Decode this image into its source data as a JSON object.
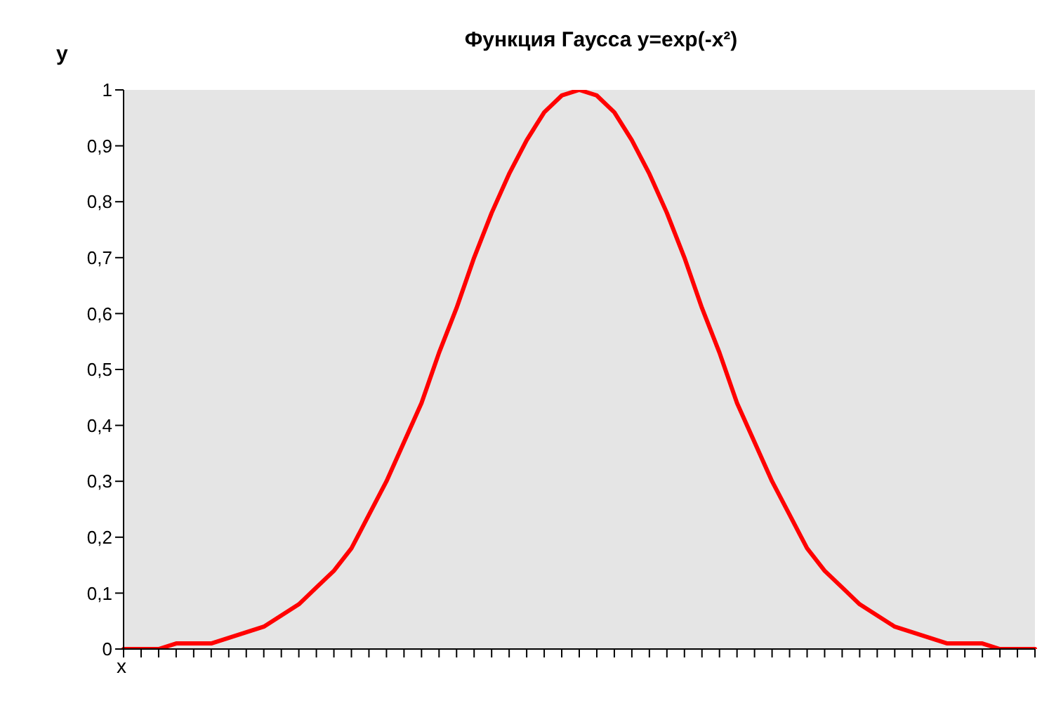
{
  "chart_data": {
    "type": "line",
    "title": "Функция Гаусса y=exp(-x²)",
    "xlabel": "x",
    "ylabel": "y",
    "categories": [
      null,
      null,
      null,
      null,
      null,
      null,
      null,
      null,
      null,
      null,
      null,
      null,
      null,
      null,
      null,
      null,
      null,
      null,
      null,
      null,
      null,
      null,
      null,
      null,
      null,
      null,
      null,
      null,
      null,
      null,
      null,
      null,
      null,
      null,
      null,
      null,
      null,
      null,
      null,
      null,
      null,
      null,
      null,
      null,
      null,
      null,
      null,
      null,
      null,
      null,
      null,
      null,
      null
    ],
    "series": [
      {
        "color": "#ff0000",
        "values": [
          0,
          0,
          0,
          0.01,
          0.01,
          0.01,
          0.02,
          0.03,
          0.04,
          0.06,
          0.08,
          0.11,
          0.14,
          0.18,
          0.24,
          0.3,
          0.37,
          0.44,
          0.53,
          0.61,
          0.7,
          0.78,
          0.85,
          0.91,
          0.96,
          0.99,
          1,
          0.99,
          0.96,
          0.91,
          0.85,
          0.78,
          0.7,
          0.61,
          0.53,
          0.44,
          0.37,
          0.3,
          0.24,
          0.18,
          0.14,
          0.11,
          0.08,
          0.06,
          0.04,
          0.03,
          0.02,
          0.01,
          0.01,
          0.01,
          0,
          0,
          0
        ]
      }
    ],
    "ylim": [
      0,
      1
    ],
    "yticks": [
      0,
      {
        "value": 0.1,
        "label": "0,1"
      },
      {
        "value": 0.2,
        "label": "0,2"
      },
      {
        "value": 0.3,
        "label": "0,3"
      },
      {
        "value": 0.4,
        "label": "0,4"
      },
      {
        "value": 0.5,
        "label": "0,5"
      },
      {
        "value": 0.6,
        "label": "0,6"
      },
      {
        "value": 0.7,
        "label": "0,7"
      },
      {
        "value": 0.8,
        "label": "0,8"
      },
      {
        "value": 0.9,
        "label": "0,9"
      },
      1
    ],
    "grid": false,
    "legend": false,
    "marker": "none",
    "line_style": "solid"
  }
}
